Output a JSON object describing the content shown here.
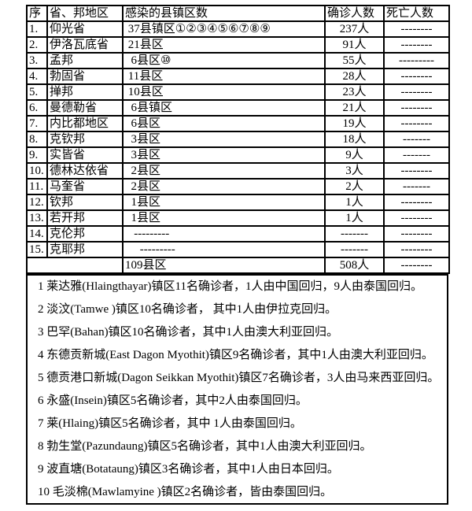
{
  "table": {
    "headers": [
      "序",
      "省、邦地区",
      "感染的县镇区数",
      "确诊人数",
      "死亡人数"
    ],
    "rows": [
      {
        "no": "1.",
        "region": "仰光省",
        "districts": " 37县镇区①②③④⑤⑥⑦⑧⑨",
        "confirmed": "237人",
        "deaths": "--------"
      },
      {
        "no": "2.",
        "region": "伊洛瓦底省",
        "districts": " 21县区",
        "confirmed": "91人",
        "deaths": "--------"
      },
      {
        "no": "3.",
        "region": "孟邦",
        "districts": "  6县区⑩",
        "confirmed": "55人",
        "deaths": "---------"
      },
      {
        "no": "4.",
        "region": "勃固省",
        "districts": " 11县区",
        "confirmed": "28人",
        "deaths": "--------"
      },
      {
        "no": "5.",
        "region": "掸邦",
        "districts": " 10县区",
        "confirmed": "23人",
        "deaths": "--------"
      },
      {
        "no": "6.",
        "region": "曼德勒省",
        "districts": "  6县镇区",
        "confirmed": "21人",
        "deaths": "--------"
      },
      {
        "no": "7.",
        "region": "内比都地区",
        "districts": "  6县区",
        "confirmed": "19人",
        "deaths": "--------"
      },
      {
        "no": "8.",
        "region": "克钦邦",
        "districts": "  3县区",
        "confirmed": "18人",
        "deaths": "-------"
      },
      {
        "no": "9.",
        "region": "实皆省",
        "districts": "  3县区",
        "confirmed": "9人",
        "deaths": "-------"
      },
      {
        "no": "10.",
        "region": "德林达依省",
        "districts": "  2县区",
        "confirmed": "3人",
        "deaths": "--------"
      },
      {
        "no": "11.",
        "region": "马奎省",
        "districts": "  2县区",
        "confirmed": "2人",
        "deaths": "-------"
      },
      {
        "no": "12.",
        "region": "钦邦",
        "districts": "  1县区",
        "confirmed": "1人",
        "deaths": "--------"
      },
      {
        "no": "13.",
        "region": "若开邦",
        "districts": "  1县区",
        "confirmed": "1人",
        "deaths": "--------"
      },
      {
        "no": "14.",
        "region": "克伦邦",
        "districts": "   ---------",
        "confirmed": "-------",
        "deaths": "--------"
      },
      {
        "no": "15.",
        "region": "克耶邦",
        "districts": "     ---------",
        "confirmed": "-------",
        "deaths": "--------"
      }
    ],
    "total": {
      "districts": "109县区",
      "confirmed": "508人",
      "deaths": "--------"
    }
  },
  "notes": [
    "1 莱达雅(Hlaingthayar)镇区11名确诊者，1人由中国回归，9人由泰国回归。",
    "2 淡汶(Tamwe )镇区10名确诊者， 其中1人由伊拉克回归。",
    "3 巴罕(Bahan)镇区10名确诊者，其中1人由澳大利亚回归。",
    "4 东德贡新城(East Dagon Myothit)镇区9名确诊者，其中1人由澳大利亚回归。",
    "5 德贡港口新城(Dagon Seikkan Myothit)镇区7名确诊者，3人由马来西亚回归。",
    "6 永盛(Insein)镇区5名确诊者，其中2人由泰国回归。",
    "7 莱(Hlaing)镇区5名确诊者，其中 1人由泰国回归。",
    "8 勃生堂(Pazundaung)镇区5名确诊者，其中1人由澳大利亚回归。",
    "9 波直塘(Botataung)镇区3名确诊者，其中1人由日本回归。",
    "10 毛淡棉(Mawlamyine )镇区2名确诊者，皆由泰国回归。"
  ]
}
